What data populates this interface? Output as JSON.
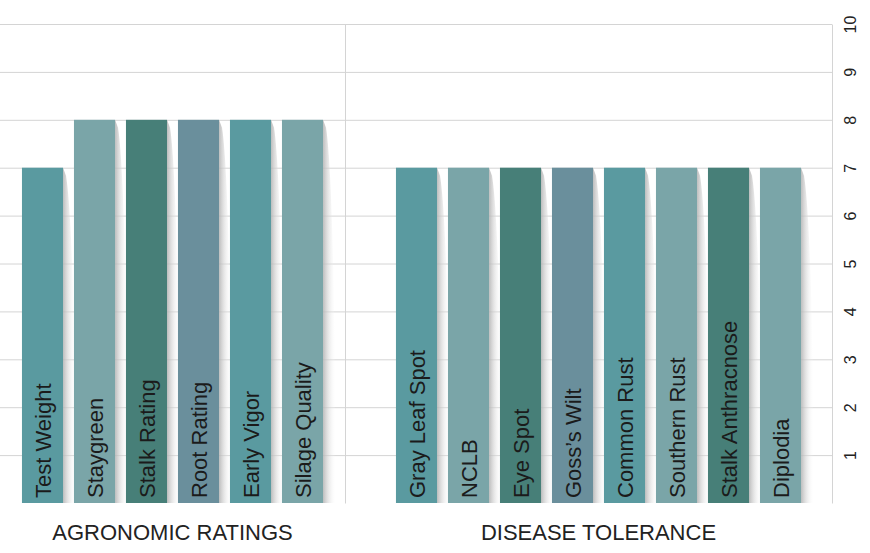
{
  "chart_data": [
    {
      "type": "bar",
      "title": "AGRONOMIC RATINGS",
      "categories": [
        "Test Weight",
        "Staygreen",
        "Stalk Rating",
        "Root Rating",
        "Early Vigor",
        "Silage Quality"
      ],
      "values": [
        7,
        8,
        8,
        8,
        8,
        8
      ],
      "colors": [
        "#5a9aa0",
        "#7aa5a8",
        "#477f78",
        "#6a8f9c",
        "#5a9aa0",
        "#7aa5a8"
      ],
      "ylim": [
        0,
        10
      ],
      "yticks": [
        1,
        2,
        3,
        4,
        5,
        6,
        7,
        8,
        9,
        10
      ],
      "grid": true,
      "tick_labels": "x"
    },
    {
      "type": "bar",
      "title": "DISEASE TOLERANCE",
      "categories": [
        "Gray Leaf Spot",
        "NCLB",
        "Eye Spot",
        "Goss’s Wilt",
        "Common Rust",
        "Southern Rust",
        "Stalk Anthracnose",
        "Diplodia"
      ],
      "values": [
        7,
        7,
        7,
        7,
        7,
        7,
        7,
        7
      ],
      "colors": [
        "#5a9aa0",
        "#7aa5a8",
        "#477f78",
        "#6a8f9c",
        "#5a9aa0",
        "#7aa5a8",
        "#477f78",
        "#7aa5a8"
      ],
      "ylim": [
        0,
        10
      ],
      "yticks": [
        1,
        2,
        3,
        4,
        5,
        6,
        7,
        8,
        9,
        10
      ],
      "grid": true
    }
  ]
}
